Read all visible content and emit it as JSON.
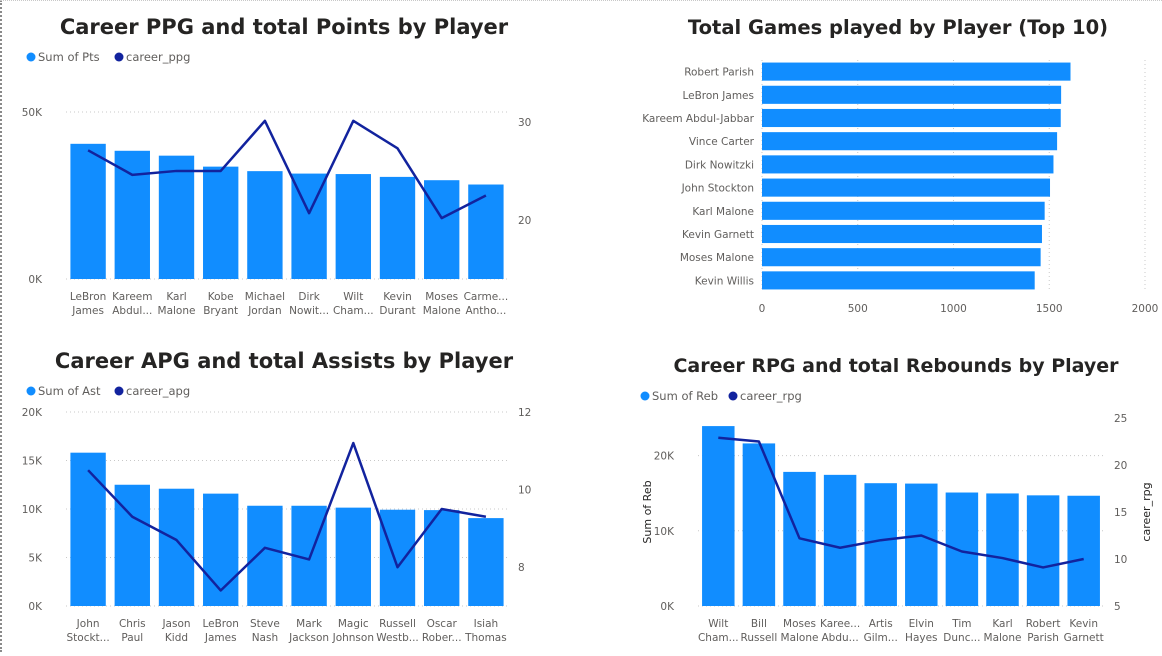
{
  "colors": {
    "bar": "#118DFF",
    "line": "#12239E",
    "text": "#605e5c",
    "title": "#252423"
  },
  "chart_data": [
    {
      "id": "ppg",
      "type": "bar",
      "title": "Career PPG and total Points by Player",
      "legend": [
        {
          "label": "Sum of Pts",
          "color": "#118DFF"
        },
        {
          "label": "career_ppg",
          "color": "#12239E"
        }
      ],
      "categories": [
        [
          "LeBron",
          "James"
        ],
        [
          "Kareem",
          "Abdul..."
        ],
        [
          "Karl",
          "Malone"
        ],
        [
          "Kobe",
          "Bryant"
        ],
        [
          "Michael",
          "Jordan"
        ],
        [
          "Dirk",
          "Nowit..."
        ],
        [
          "Wilt",
          "Cham..."
        ],
        [
          "Kevin",
          "Durant"
        ],
        [
          "Moses",
          "Malone"
        ],
        [
          "Carme...",
          "Antho..."
        ]
      ],
      "series": [
        {
          "name": "Sum of Pts",
          "type": "bar",
          "values": [
            40474,
            38387,
            36928,
            33643,
            32292,
            31560,
            31419,
            30571,
            29580,
            28289
          ]
        },
        {
          "name": "career_ppg",
          "type": "line",
          "values": [
            27.1,
            24.6,
            25.0,
            25.0,
            30.1,
            20.7,
            30.1,
            27.3,
            20.2,
            22.5
          ]
        }
      ],
      "y_left": {
        "min": 0,
        "max": 50000,
        "ticks": [
          {
            "v": 0,
            "label": "0K"
          },
          {
            "v": 50000,
            "label": "50K"
          }
        ]
      },
      "y_right": {
        "min": 14,
        "max": 31,
        "ticks": [
          {
            "v": 20,
            "label": "20"
          },
          {
            "v": 30,
            "label": "30"
          }
        ]
      },
      "ylabel_left": "",
      "ylabel_right": "",
      "grid": true,
      "legend_position": "top-left"
    },
    {
      "id": "games",
      "type": "bar",
      "orientation": "horizontal",
      "title": "Total Games played by Player (Top 10)",
      "categories": [
        "Robert Parish",
        "LeBron James",
        "Kareem Abdul-Jabbar",
        "Vince Carter",
        "Dirk Nowitzki",
        "John Stockton",
        "Karl Malone",
        "Kevin Garnett",
        "Moses Malone",
        "Kevin Willis"
      ],
      "values": [
        1611,
        1562,
        1560,
        1541,
        1522,
        1504,
        1476,
        1462,
        1455,
        1424
      ],
      "x_axis": {
        "min": 0,
        "max": 2000,
        "ticks": [
          {
            "v": 0,
            "label": "0"
          },
          {
            "v": 500,
            "label": "500"
          },
          {
            "v": 1000,
            "label": "1000"
          },
          {
            "v": 1500,
            "label": "1500"
          },
          {
            "v": 2000,
            "label": "2000"
          }
        ]
      },
      "xlabel": "",
      "ylabel": "",
      "grid": true
    },
    {
      "id": "apg",
      "type": "bar",
      "title": "Career APG and total Assists by Player",
      "legend": [
        {
          "label": "Sum of Ast",
          "color": "#118DFF"
        },
        {
          "label": "career_apg",
          "color": "#12239E"
        }
      ],
      "categories": [
        [
          "John",
          "Stockt..."
        ],
        [
          "Chris",
          "Paul"
        ],
        [
          "Jason",
          "Kidd"
        ],
        [
          "LeBron",
          "James"
        ],
        [
          "Steve",
          "Nash"
        ],
        [
          "Mark",
          "Jackson"
        ],
        [
          "Magic",
          "Johnson"
        ],
        [
          "Russell",
          "Westb..."
        ],
        [
          "Oscar",
          "Rober..."
        ],
        [
          "Isiah",
          "Thomas"
        ]
      ],
      "series": [
        {
          "name": "Sum of Ast",
          "type": "bar",
          "values": [
            15806,
            12500,
            12091,
            11584,
            10335,
            10334,
            10141,
            9925,
            9887,
            9061
          ]
        },
        {
          "name": "career_apg",
          "type": "line",
          "values": [
            10.5,
            9.3,
            8.7,
            7.4,
            8.5,
            8.2,
            11.2,
            8.0,
            9.5,
            9.3
          ]
        }
      ],
      "y_left": {
        "min": 0,
        "max": 20000,
        "ticks": [
          {
            "v": 0,
            "label": "0K"
          },
          {
            "v": 5000,
            "label": "5K"
          },
          {
            "v": 10000,
            "label": "10K"
          },
          {
            "v": 15000,
            "label": "15K"
          },
          {
            "v": 20000,
            "label": "20K"
          }
        ]
      },
      "y_right": {
        "min": 7.0,
        "max": 12.0,
        "ticks": [
          {
            "v": 8,
            "label": "8"
          },
          {
            "v": 10,
            "label": "10"
          },
          {
            "v": 12,
            "label": "12"
          }
        ]
      },
      "ylabel_left": "",
      "ylabel_right": "",
      "grid": true,
      "legend_position": "top-left"
    },
    {
      "id": "rpg",
      "type": "bar",
      "title": "Career RPG and total Rebounds by Player",
      "legend": [
        {
          "label": "Sum of Reb",
          "color": "#118DFF"
        },
        {
          "label": "career_rpg",
          "color": "#12239E"
        }
      ],
      "categories": [
        [
          "Wilt",
          "Cham..."
        ],
        [
          "Bill",
          "Russell"
        ],
        [
          "Moses",
          "Malone"
        ],
        [
          "Karee...",
          "Abdu..."
        ],
        [
          "Artis",
          "Gilm..."
        ],
        [
          "Elvin",
          "Hayes"
        ],
        [
          "Tim",
          "Dunc..."
        ],
        [
          "Karl",
          "Malone"
        ],
        [
          "Robert",
          "Parish"
        ],
        [
          "Kevin",
          "Garnett"
        ]
      ],
      "series": [
        {
          "name": "Sum of Reb",
          "type": "bar",
          "values": [
            23924,
            21620,
            17834,
            17440,
            16330,
            16279,
            15091,
            14968,
            14715,
            14662
          ]
        },
        {
          "name": "career_rpg",
          "type": "line",
          "values": [
            22.9,
            22.5,
            12.2,
            11.2,
            12.0,
            12.5,
            10.8,
            10.1,
            9.1,
            10.0
          ]
        }
      ],
      "y_left": {
        "min": 0,
        "max": 25000,
        "ticks": [
          {
            "v": 0,
            "label": "0K"
          },
          {
            "v": 10000,
            "label": "10K"
          },
          {
            "v": 20000,
            "label": "20K"
          }
        ]
      },
      "y_right": {
        "min": 5,
        "max": 25,
        "ticks": [
          {
            "v": 5,
            "label": "5"
          },
          {
            "v": 10,
            "label": "10"
          },
          {
            "v": 15,
            "label": "15"
          },
          {
            "v": 20,
            "label": "20"
          },
          {
            "v": 25,
            "label": "25"
          }
        ]
      },
      "ylabel_left": "Sum of Reb",
      "ylabel_right": "career_rpg",
      "grid": true,
      "legend_position": "top-left"
    }
  ]
}
